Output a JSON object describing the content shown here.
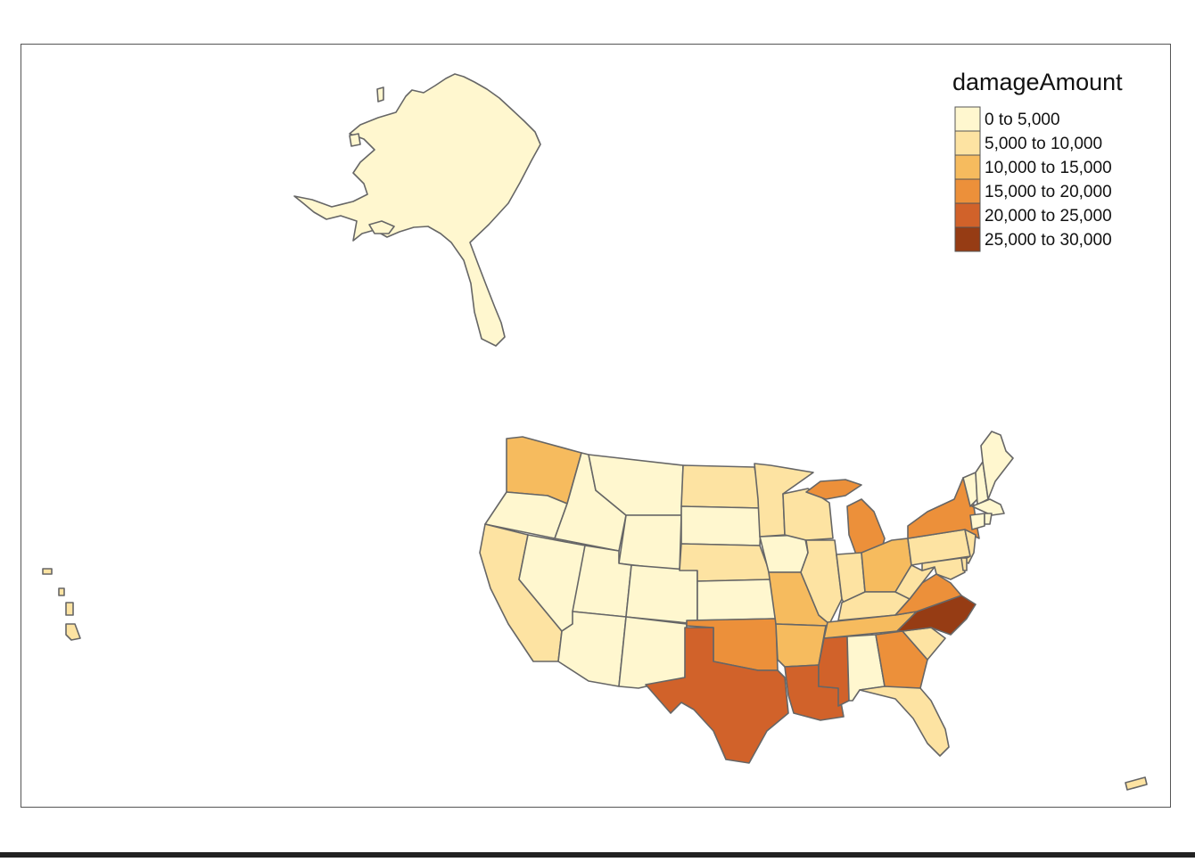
{
  "legend": {
    "title": "damageAmount",
    "classes": [
      {
        "label": "0 to 5,000",
        "color": "#FFF7CF"
      },
      {
        "label": "5,000 to 10,000",
        "color": "#FDE3A2"
      },
      {
        "label": "10,000 to 15,000",
        "color": "#F6BB5E"
      },
      {
        "label": "15,000 to 20,000",
        "color": "#EC903A"
      },
      {
        "label": "20,000 to 25,000",
        "color": "#D1622A"
      },
      {
        "label": "25,000 to 30,000",
        "color": "#963C14"
      }
    ]
  },
  "map_data": {
    "variable": "damageAmount",
    "class_by_state": {
      "AK": 0,
      "HI": 1,
      "PR": 1,
      "WA": 2,
      "OR": 0,
      "CA": 1,
      "NV": 0,
      "ID": 0,
      "MT": 0,
      "WY": 0,
      "UT": 0,
      "AZ": 0,
      "CO": 0,
      "NM": 0,
      "ND": 1,
      "SD": 0,
      "NE": 1,
      "KS": 0,
      "OK": 3,
      "TX": 4,
      "MN": 1,
      "IA": 0,
      "MO": 2,
      "AR": 2,
      "LA": 4,
      "WI": 1,
      "IL": 1,
      "MI": 3,
      "IN": 1,
      "OH": 2,
      "KY": 1,
      "TN": 2,
      "MS": 4,
      "AL": 0,
      "GA": 3,
      "FL": 1,
      "SC": 1,
      "NC": 5,
      "VA": 3,
      "WV": 1,
      "PA": 1,
      "NY": 3,
      "NJ": 1,
      "MD": 1,
      "DE": 1,
      "ME": 0,
      "NH": 0,
      "VT": 0,
      "MA": 0,
      "CT": 0,
      "RI": 0
    }
  }
}
